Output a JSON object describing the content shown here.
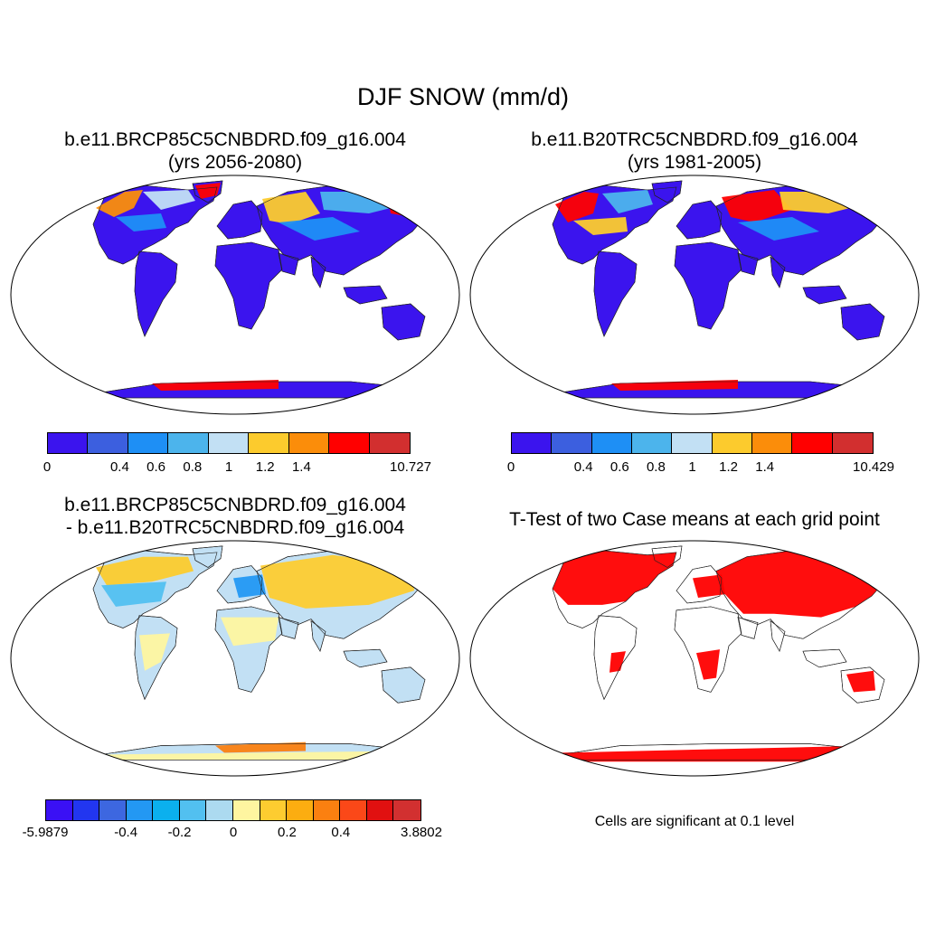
{
  "title": "DJF SNOW (mm/d)",
  "panels": [
    {
      "title_line1": "b.e11.BRCP85C5CNBDRD.f09_g16.004",
      "title_line2": "(yrs 2056-2080)",
      "colorbar": {
        "colors": [
          "#3b14ee",
          "#3c5fdf",
          "#1e8ff5",
          "#4cb4ec",
          "#c2e0f4",
          "#fccb2d",
          "#fb8d0a",
          "#ff0000",
          "#d22f2f"
        ],
        "labels": [
          "0",
          "0.4",
          "0.6",
          "0.8",
          "1",
          "1.2",
          "1.4",
          "10.727"
        ]
      }
    },
    {
      "title_line1": "b.e11.B20TRC5CNBDRD.f09_g16.004",
      "title_line2": "(yrs 1981-2005)",
      "colorbar": {
        "colors": [
          "#3b14ee",
          "#3c5fdf",
          "#1e8ff5",
          "#4cb4ec",
          "#c2e0f4",
          "#fccb2d",
          "#fb8d0a",
          "#ff0000",
          "#d22f2f"
        ],
        "labels": [
          "0",
          "0.4",
          "0.6",
          "0.8",
          "1",
          "1.2",
          "1.4",
          "10.429"
        ]
      }
    },
    {
      "title_line1": "b.e11.BRCP85C5CNBDRD.f09_g16.004",
      "title_line2": "- b.e11.B20TRC5CNBDRD.f09_g16.004",
      "colorbar": {
        "colors": [
          "#3a10f5",
          "#2236f0",
          "#3d67e0",
          "#2398f3",
          "#0bb0ee",
          "#52c0f0",
          "#acdaf0",
          "#fef5a0",
          "#fdcc30",
          "#fcad10",
          "#fb8010",
          "#fb4818",
          "#e11010",
          "#d23030"
        ],
        "labels": [
          "-5.9879",
          "-0.4",
          "-0.2",
          "0",
          "0.2",
          "0.4",
          "3.8802"
        ]
      }
    },
    {
      "title_line1": "T-Test of two Case means at each grid point",
      "note": "Cells are significant at 0.1 level"
    }
  ],
  "map_colors": {
    "ocean": "#ffffff",
    "land_low": "#3b14ee",
    "diff_tropics": "#c2e0f4",
    "diff_positive": "#fef5a0",
    "significant": "#ff0000"
  }
}
